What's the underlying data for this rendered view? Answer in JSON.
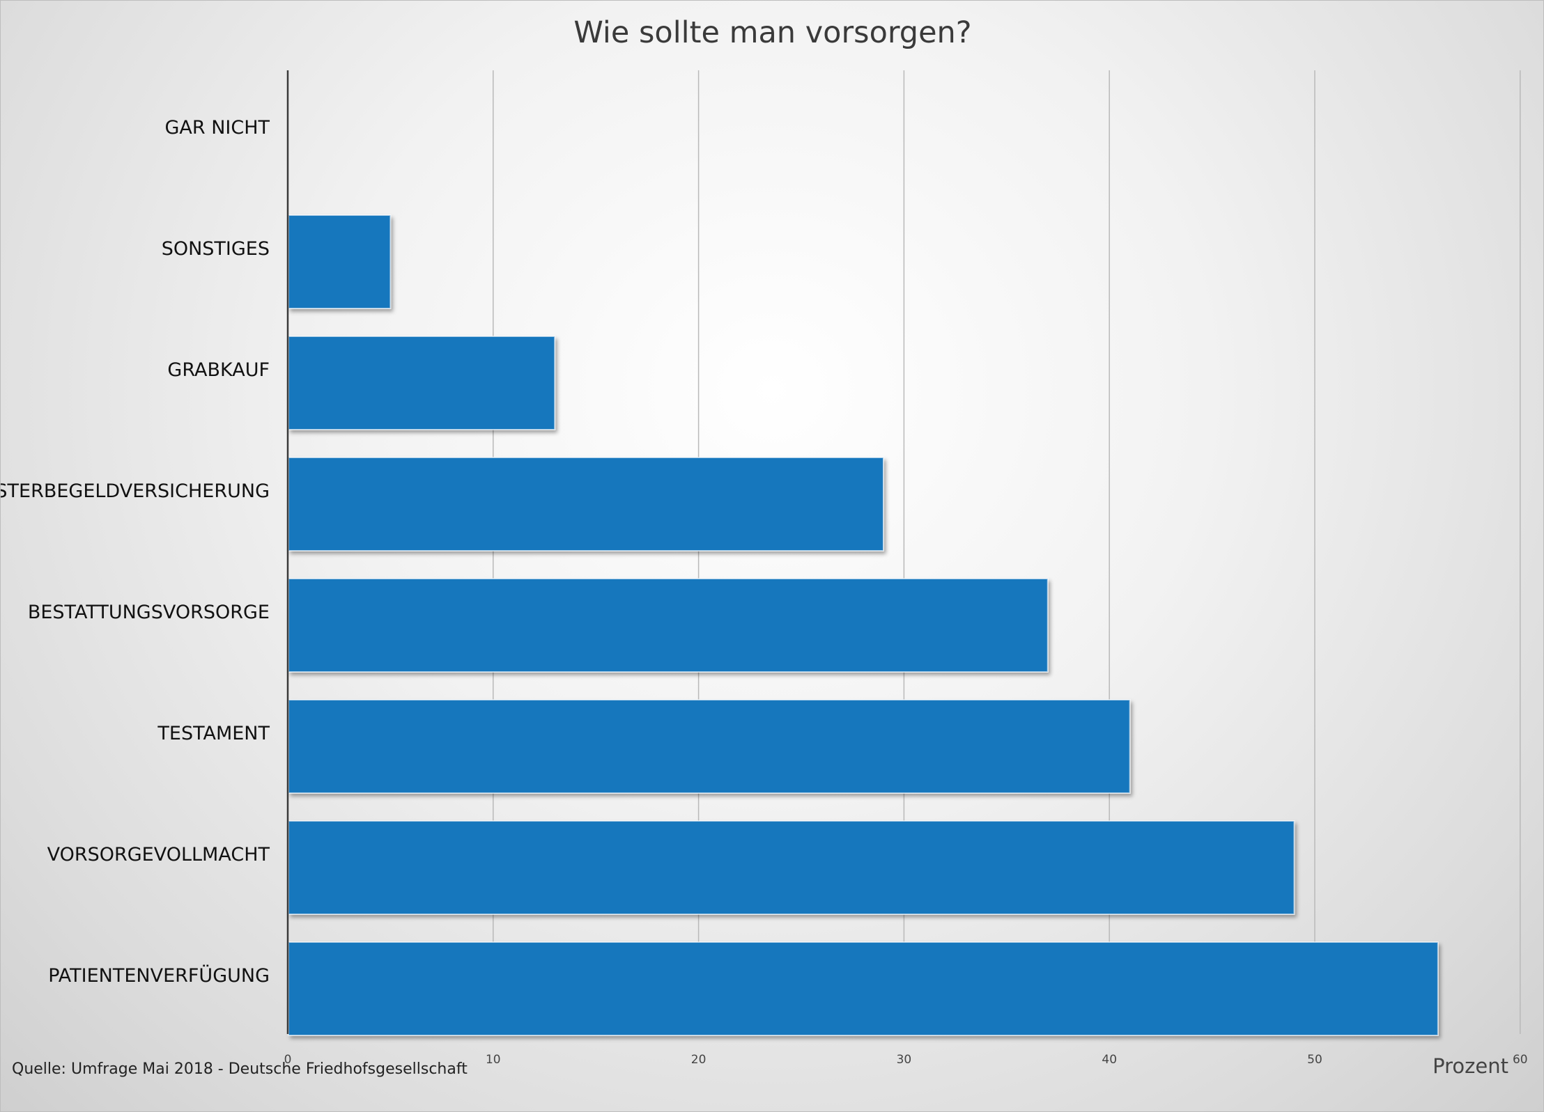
{
  "chart_data": {
    "type": "bar",
    "orientation": "horizontal",
    "title": "Wie sollte man vorsorgen?",
    "categories": [
      "GAR NICHT",
      "SONSTIGES",
      "GRABKAUF",
      "STERBEGELDVERSICHERUNG",
      "BESTATTUNGSVORSORGE",
      "TESTAMENT",
      "VORSORGEVOLLMACHT",
      "PATIENTENVERFÜGUNG"
    ],
    "values": [
      0,
      5,
      13,
      29,
      37,
      41,
      49,
      56
    ],
    "xlabel": "Prozent",
    "xlim": [
      0,
      60
    ],
    "xticks": [
      "0",
      "10",
      "20",
      "30",
      "40",
      "50",
      "60"
    ],
    "grid": true,
    "bar_color": "#1877bd"
  },
  "source": "Quelle: Umfrage Mai 2018 - Deutsche Friedhofsgesellschaft"
}
